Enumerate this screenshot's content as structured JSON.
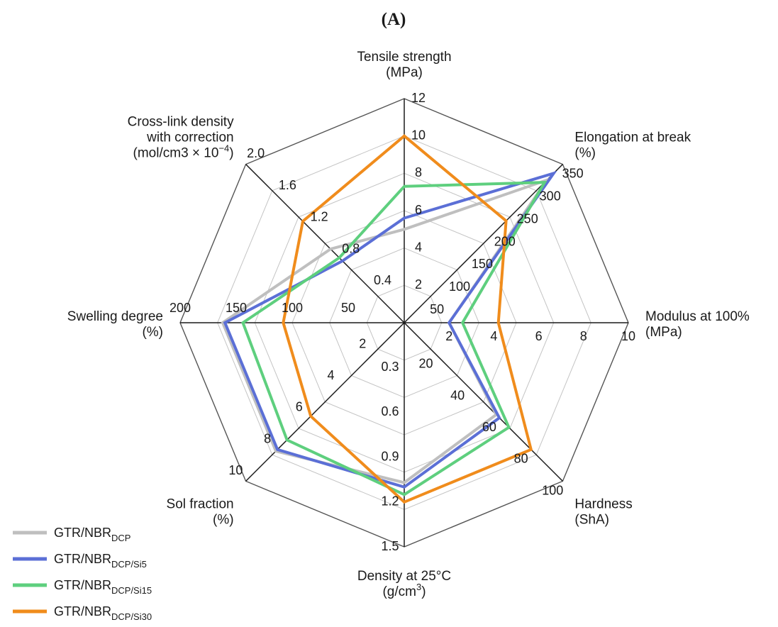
{
  "chart_data": {
    "type": "radar",
    "title": "",
    "panel_label": "(A)",
    "legend_position": "bottom-left",
    "grid": true,
    "axes": [
      {
        "name": "tensile",
        "label_lines": [
          {
            "text": "Tensile strength"
          },
          {
            "text": "(MPa)"
          }
        ],
        "range": [
          0,
          12
        ],
        "ticks": [
          "2",
          "4",
          "6",
          "8",
          "10",
          "12"
        ]
      },
      {
        "name": "elongation",
        "label_lines": [
          {
            "text": "Elongation at break"
          },
          {
            "text": "(%)"
          }
        ],
        "range": [
          0,
          350
        ],
        "ticks": [
          "50",
          "100",
          "150",
          "200",
          "250",
          "300",
          "350"
        ]
      },
      {
        "name": "modulus",
        "label_lines": [
          {
            "text": "Modulus at 100%"
          },
          {
            "text": "(MPa)"
          }
        ],
        "range": [
          0,
          10
        ],
        "ticks": [
          "2",
          "4",
          "6",
          "8",
          "10"
        ]
      },
      {
        "name": "hardness",
        "label_lines": [
          {
            "text": "Hardness"
          },
          {
            "text": "(ShA)"
          }
        ],
        "range": [
          0,
          100
        ],
        "ticks": [
          "20",
          "40",
          "60",
          "80",
          "100"
        ]
      },
      {
        "name": "density",
        "label_lines": [
          {
            "text": "Density at 25°C"
          },
          {
            "text": "(g/cm",
            "sup": "3",
            "after": ")"
          }
        ],
        "range": [
          0,
          1.5
        ],
        "ticks": [
          "0.3",
          "0.6",
          "0.9",
          "1.2",
          "1.5"
        ]
      },
      {
        "name": "sol-fraction",
        "label_lines": [
          {
            "text": "Sol fraction"
          },
          {
            "text": "(%)"
          }
        ],
        "range": [
          0,
          10
        ],
        "ticks": [
          "2",
          "4",
          "6",
          "8",
          "10"
        ]
      },
      {
        "name": "swelling",
        "label_lines": [
          {
            "text": "Swelling degree"
          },
          {
            "text": "(%)"
          }
        ],
        "range": [
          0,
          200
        ],
        "ticks": [
          "50",
          "100",
          "150",
          "200"
        ]
      },
      {
        "name": "crosslink",
        "label_lines": [
          {
            "text": "Cross-link density"
          },
          {
            "text": "with correction"
          },
          {
            "text": "(mol/cm3 × 10",
            "sup": "−4",
            "after": ")"
          }
        ],
        "range": [
          0,
          2.0
        ],
        "ticks": [
          "0.4",
          "0.8",
          "1.2",
          "1.6",
          "2.0"
        ]
      }
    ],
    "series": [
      {
        "name": "GTR/NBR",
        "sub": "DCP",
        "color": "#bfbfbf",
        "values": [
          5.0,
          315,
          2.0,
          58,
          1.07,
          8.1,
          162,
          0.93
        ]
      },
      {
        "name": "GTR/NBR",
        "sub": "DCP/Si5",
        "color": "#5b6fd6",
        "values": [
          5.6,
          330,
          2.0,
          60,
          1.1,
          8.0,
          160,
          0.78
        ]
      },
      {
        "name": "GTR/NBR",
        "sub": "DCP/Si15",
        "color": "#5ecf7e",
        "values": [
          7.3,
          310,
          2.6,
          66,
          1.15,
          7.4,
          144,
          0.82
        ]
      },
      {
        "name": "GTR/NBR",
        "sub": "DCP/Si30",
        "color": "#f08c1c",
        "values": [
          10.0,
          225,
          4.2,
          80,
          1.2,
          5.9,
          108,
          1.28
        ]
      }
    ]
  }
}
